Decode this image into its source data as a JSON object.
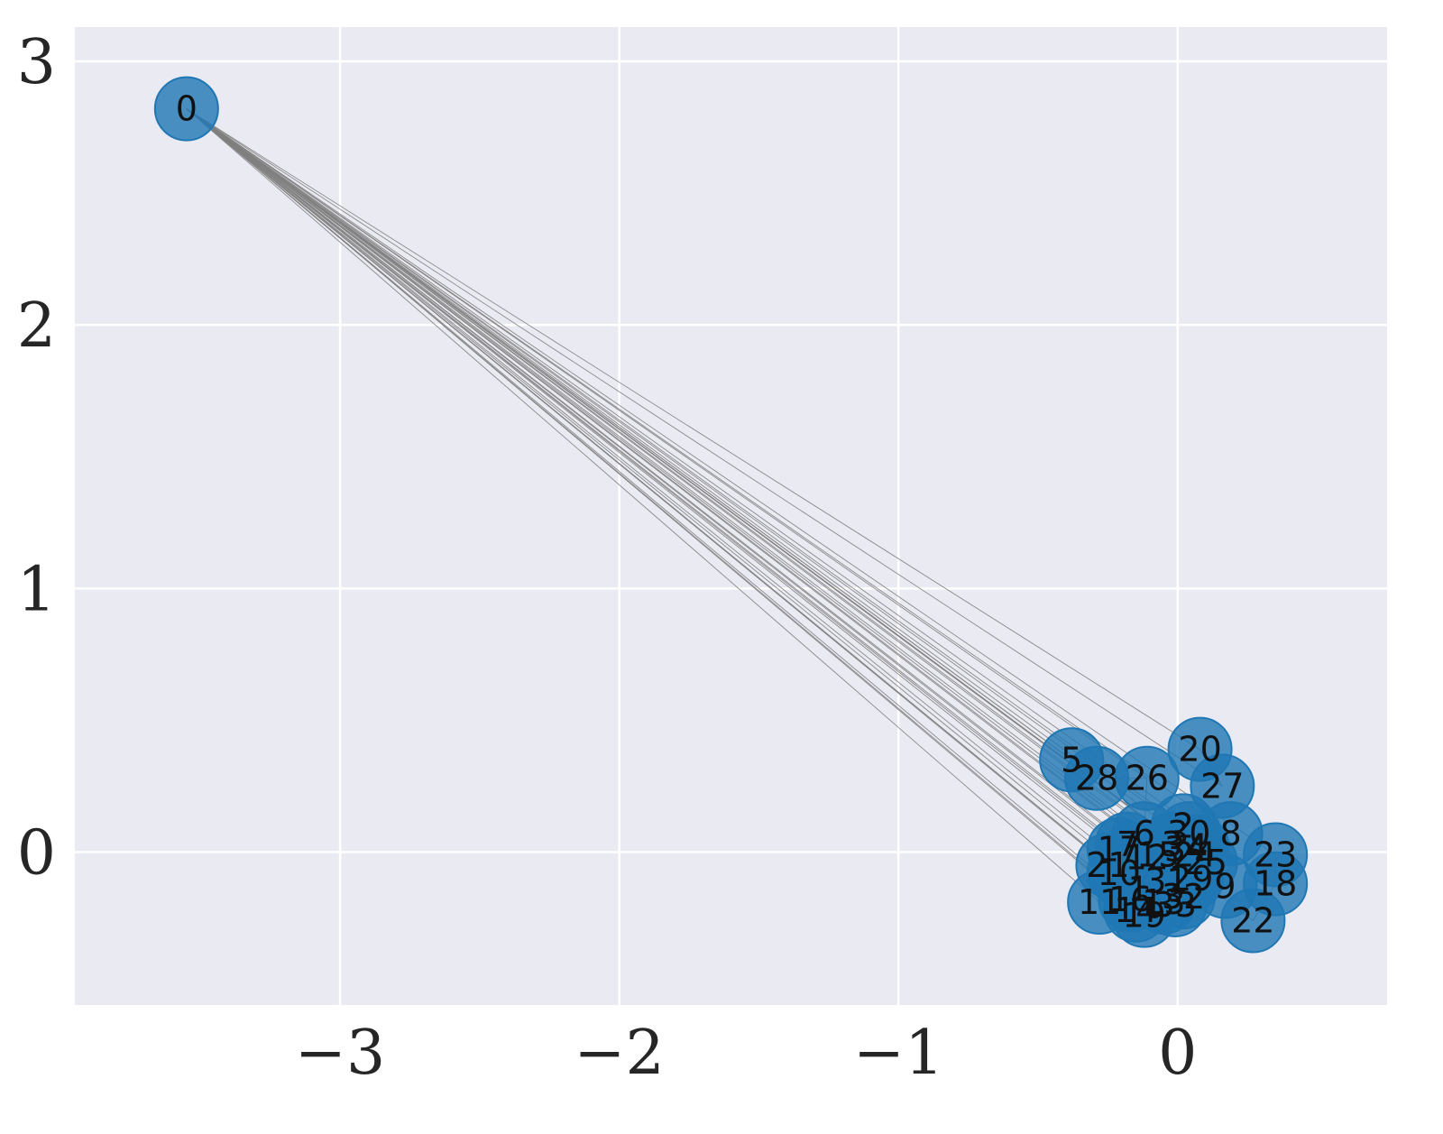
{
  "chart_data": {
    "type": "scatter",
    "title": "",
    "xlabel": "",
    "ylabel": "",
    "xlim": [
      -3.95,
      0.75
    ],
    "ylim": [
      -0.58,
      3.13
    ],
    "xticks": [
      -3,
      -2,
      -1,
      0
    ],
    "yticks": [
      0,
      1,
      2,
      3
    ],
    "xtick_labels": [
      "−3",
      "−2",
      "−1",
      "0"
    ],
    "ytick_labels": [
      "0",
      "1",
      "2",
      "3"
    ],
    "grid": true,
    "background": "#eaeaf2",
    "grid_color": "#ffffff",
    "node_color": "#1f77b4",
    "edge_color": "#808080",
    "nodes": [
      {
        "id": "0",
        "x": -3.55,
        "y": 2.82
      },
      {
        "id": "1",
        "x": -0.14,
        "y": -0.14
      },
      {
        "id": "2",
        "x": 0.02,
        "y": 0.1
      },
      {
        "id": "3",
        "x": -0.02,
        "y": 0.03
      },
      {
        "id": "4",
        "x": 0.07,
        "y": 0.02
      },
      {
        "id": "5",
        "x": -0.38,
        "y": 0.35
      },
      {
        "id": "6",
        "x": -0.12,
        "y": 0.07
      },
      {
        "id": "7",
        "x": -0.18,
        "y": 0.03
      },
      {
        "id": "8",
        "x": 0.19,
        "y": 0.07
      },
      {
        "id": "9",
        "x": 0.17,
        "y": -0.13
      },
      {
        "id": "10",
        "x": -0.21,
        "y": -0.08
      },
      {
        "id": "11",
        "x": -0.28,
        "y": -0.19
      },
      {
        "id": "12",
        "x": -0.11,
        "y": -0.02
      },
      {
        "id": "13",
        "x": -0.05,
        "y": -0.19
      },
      {
        "id": "14",
        "x": -0.15,
        "y": -0.22
      },
      {
        "id": "15",
        "x": -0.07,
        "y": -0.01
      },
      {
        "id": "16",
        "x": -0.17,
        "y": -0.18
      },
      {
        "id": "17",
        "x": -0.21,
        "y": 0.01
      },
      {
        "id": "18",
        "x": 0.35,
        "y": -0.12
      },
      {
        "id": "19",
        "x": -0.12,
        "y": -0.24
      },
      {
        "id": "20",
        "x": 0.08,
        "y": 0.39
      },
      {
        "id": "21",
        "x": -0.25,
        "y": -0.05
      },
      {
        "id": "22",
        "x": 0.27,
        "y": -0.26
      },
      {
        "id": "23",
        "x": 0.35,
        "y": -0.01
      },
      {
        "id": "24",
        "x": 0.06,
        "y": -0.01
      },
      {
        "id": "25",
        "x": 0.1,
        "y": -0.04
      },
      {
        "id": "26",
        "x": -0.11,
        "y": 0.28
      },
      {
        "id": "27",
        "x": 0.16,
        "y": 0.25
      },
      {
        "id": "28",
        "x": -0.29,
        "y": 0.28
      },
      {
        "id": "29",
        "x": 0.05,
        "y": -0.1
      },
      {
        "id": "30",
        "x": 0.04,
        "y": 0.07
      },
      {
        "id": "31",
        "x": -0.04,
        "y": -0.11
      },
      {
        "id": "32",
        "x": 0.02,
        "y": -0.17
      },
      {
        "id": "33",
        "x": -0.01,
        "y": -0.2
      },
      {
        "id": "34",
        "x": 0.03,
        "y": 0.01
      }
    ],
    "edges_from": "0",
    "edges_to": [
      "1",
      "2",
      "3",
      "4",
      "5",
      "6",
      "7",
      "8",
      "9",
      "10",
      "11",
      "12",
      "13",
      "14",
      "15",
      "16",
      "17",
      "18",
      "19",
      "20",
      "21",
      "22",
      "23",
      "24",
      "25",
      "26",
      "27",
      "28",
      "29",
      "30",
      "31",
      "32",
      "33",
      "34"
    ],
    "extra_edges": [
      [
        "5",
        "28"
      ],
      [
        "28",
        "26"
      ],
      [
        "26",
        "6"
      ],
      [
        "2",
        "8"
      ],
      [
        "20",
        "27"
      ],
      [
        "23",
        "18"
      ],
      [
        "18",
        "22"
      ],
      [
        "9",
        "25"
      ],
      [
        "11",
        "10"
      ],
      [
        "14",
        "19"
      ],
      [
        "13",
        "32"
      ],
      [
        "17",
        "7"
      ],
      [
        "21",
        "10"
      ],
      [
        "15",
        "3"
      ],
      [
        "24",
        "4"
      ]
    ]
  }
}
